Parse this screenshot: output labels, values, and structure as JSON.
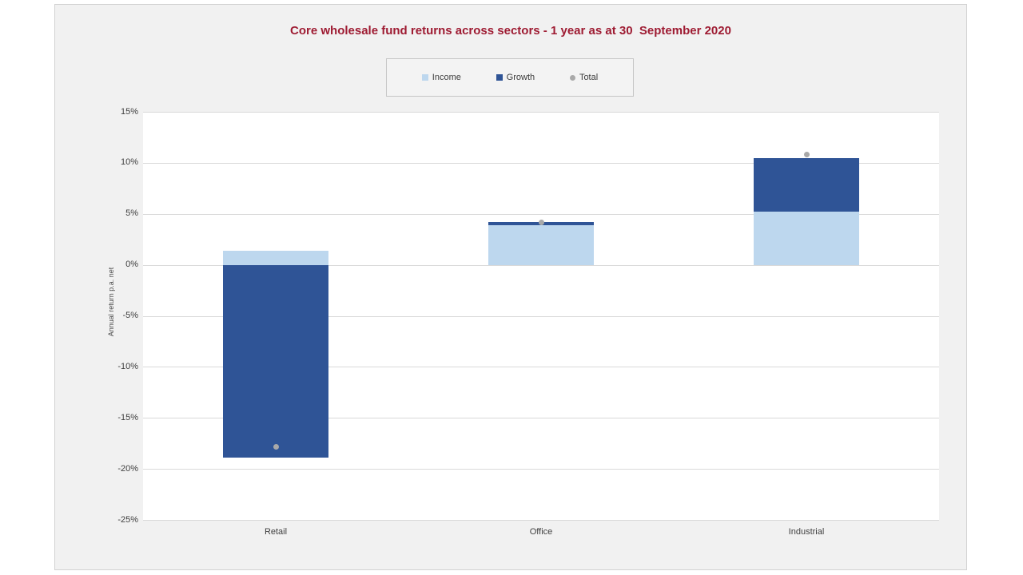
{
  "colors": {
    "title": "#9e1b32",
    "income": "#bdd7ee",
    "growth": "#2f5496",
    "total": "#a9a9a9",
    "gridline": "#d9d9d9",
    "panel_background": "#f1f1f1",
    "plot_background": "#ffffff",
    "axis_text": "#404040"
  },
  "chart_data": {
    "type": "bar",
    "subtype": "stacked-bars-with-total-point-marker",
    "title": "Core wholesale fund returns across sectors - 1 year as at 30  September 2020",
    "xlabel": "",
    "ylabel": "Annual return p.a. net",
    "categories": [
      "Retail",
      "Office",
      "Industrial"
    ],
    "series": [
      {
        "name": "Income",
        "type": "bar",
        "color": "#bdd7ee",
        "values": [
          1.4,
          3.9,
          5.2
        ]
      },
      {
        "name": "Growth",
        "type": "bar",
        "color": "#2f5496",
        "values": [
          -18.9,
          0.3,
          5.3
        ]
      },
      {
        "name": "Total",
        "type": "point",
        "color": "#a9a9a9",
        "values": [
          -17.8,
          4.2,
          10.8
        ]
      }
    ],
    "ylim": [
      -25,
      15
    ],
    "yticks": [
      15,
      10,
      5,
      0,
      -5,
      -10,
      -15,
      -20,
      -25
    ],
    "ytick_format": "percent",
    "grid": true,
    "legend_position": "top-center",
    "legend_entries": [
      "Income",
      "Growth",
      "Total"
    ]
  }
}
